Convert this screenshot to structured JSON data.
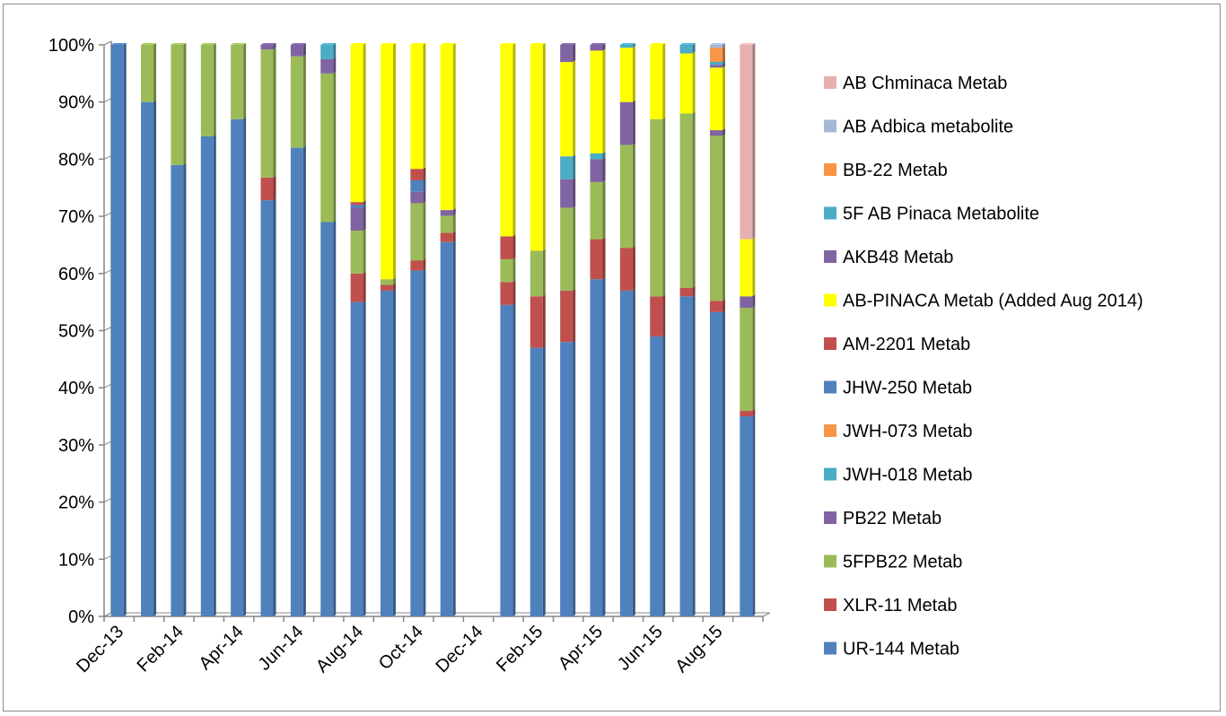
{
  "chart_data": {
    "type": "bar",
    "stacked": "percent",
    "title": "",
    "xlabel": "",
    "ylabel": "",
    "ylim": [
      0,
      100
    ],
    "grid": false,
    "legend_position": "right",
    "y_ticks": [
      "0%",
      "10%",
      "20%",
      "30%",
      "40%",
      "50%",
      "60%",
      "70%",
      "80%",
      "90%",
      "100%"
    ],
    "x_tick_labels": [
      "Dec-13",
      "Feb-14",
      "Apr-14",
      "Jun-14",
      "Aug-14",
      "Oct-14",
      "Dec-14",
      "Feb-15",
      "Apr-15",
      "Jun-15",
      "Aug-15"
    ],
    "categories": [
      "Dec-13",
      "Jan-14",
      "Feb-14",
      "Mar-14",
      "Apr-14",
      "May-14",
      "Jun-14",
      "Jul-14",
      "Aug-14",
      "Sep-14",
      "Oct-14",
      "Nov-14",
      "Dec-14",
      "Jan-15",
      "Feb-15",
      "Mar-15",
      "Apr-15",
      "May-15",
      "Jun-15",
      "Jul-15",
      "Aug-15",
      "Sep-15"
    ],
    "series": [
      {
        "name": "UR-144 Metab",
        "color": "#4f81bd",
        "values": [
          100,
          90,
          79,
          84,
          87,
          73.4,
          82,
          69,
          55,
          57,
          60.5,
          65.5,
          0,
          54.5,
          47,
          48,
          59,
          57,
          49,
          56,
          53.5,
          35
        ]
      },
      {
        "name": "XLR-11 Metab",
        "color": "#c0504d",
        "values": [
          0,
          0,
          0,
          0,
          0,
          4,
          0,
          0,
          5,
          1,
          1.8,
          1.6,
          0,
          4,
          9,
          9,
          7,
          7.5,
          7,
          1.5,
          2,
          1
        ]
      },
      {
        "name": "5FPB22 Metab",
        "color": "#9bbb59",
        "values": [
          0,
          10,
          21,
          16,
          13,
          22.6,
          16,
          26,
          7.5,
          1,
          10,
          3,
          0,
          4,
          8,
          14.5,
          10,
          18,
          31,
          30.5,
          29,
          18
        ]
      },
      {
        "name": "PB22 Metab",
        "color": "#8064a2",
        "values": [
          0,
          0,
          0,
          0,
          0,
          0.8,
          2,
          2.5,
          4,
          0,
          2,
          1,
          0,
          0,
          0,
          5,
          4,
          7.5,
          0,
          0,
          1,
          2
        ]
      },
      {
        "name": "JWH-018 Metab",
        "color": "#4bacc6",
        "values": [
          0,
          0,
          0,
          0,
          0,
          0,
          0,
          2.5,
          0,
          0,
          0,
          0,
          0,
          0,
          0,
          4,
          1,
          0,
          0,
          0,
          0,
          0
        ]
      },
      {
        "name": "JWH-073 Metab",
        "color": "#f79646",
        "values": [
          0,
          0,
          0,
          0,
          0,
          0,
          0,
          0,
          0,
          0,
          0,
          0,
          0,
          0,
          0,
          0,
          0,
          0,
          0,
          0,
          0,
          0
        ]
      },
      {
        "name": "JHW-250 Metab",
        "color": "#4f81bd",
        "values": [
          0,
          0,
          0,
          0,
          0,
          0,
          0,
          0,
          0.5,
          0,
          2,
          0,
          0,
          0,
          0,
          0,
          0,
          0,
          0,
          0,
          0,
          0
        ]
      },
      {
        "name": "AM-2201 Metab",
        "color": "#c0504d",
        "values": [
          0,
          0,
          0,
          0,
          0,
          0,
          0,
          0,
          0.5,
          0,
          2,
          0,
          0,
          4,
          0,
          0,
          0,
          0,
          0,
          0,
          0,
          0
        ]
      },
      {
        "name": "AB-PINACA Metab (Added Aug 2014)",
        "color": "#ffff00",
        "values": [
          0,
          0,
          0,
          0,
          0,
          0,
          0,
          0,
          27.5,
          41,
          21.7,
          28.9,
          0,
          33.5,
          36,
          16.5,
          18,
          9.5,
          13,
          10.5,
          11,
          10
        ]
      },
      {
        "name": "AKB48 Metab",
        "color": "#8064a2",
        "values": [
          0,
          0,
          0,
          0,
          0,
          0,
          0,
          0,
          0,
          0,
          0,
          0,
          0,
          0,
          0,
          3,
          1,
          0,
          0,
          0,
          0.5,
          0
        ]
      },
      {
        "name": "5F AB Pinaca Metabolite",
        "color": "#4bacc6",
        "values": [
          0,
          0,
          0,
          0,
          0,
          0,
          0,
          0,
          0,
          0,
          0,
          0,
          0,
          0,
          0,
          0,
          0,
          0.5,
          0,
          1.5,
          0.5,
          0
        ]
      },
      {
        "name": "BB-22 Metab",
        "color": "#f79646",
        "values": [
          0,
          0,
          0,
          0,
          0,
          0,
          0,
          0,
          0,
          0,
          0,
          0,
          0,
          0,
          0,
          0,
          0,
          0,
          0,
          0,
          2.5,
          0
        ]
      },
      {
        "name": "AB Adbica metabolite",
        "color": "#a5b8d8",
        "values": [
          0,
          0,
          0,
          0,
          0,
          0,
          0,
          0,
          0,
          0,
          0,
          0,
          0,
          0,
          0,
          0,
          0,
          0,
          0,
          0,
          0.5,
          0
        ]
      },
      {
        "name": "AB Chminaca Metab",
        "color": "#e6b0b0",
        "values": [
          0,
          0,
          0,
          0,
          0,
          0,
          0,
          0,
          0,
          0,
          0,
          0,
          0,
          0,
          0,
          0,
          0,
          0,
          0,
          0,
          0,
          34
        ]
      }
    ]
  }
}
